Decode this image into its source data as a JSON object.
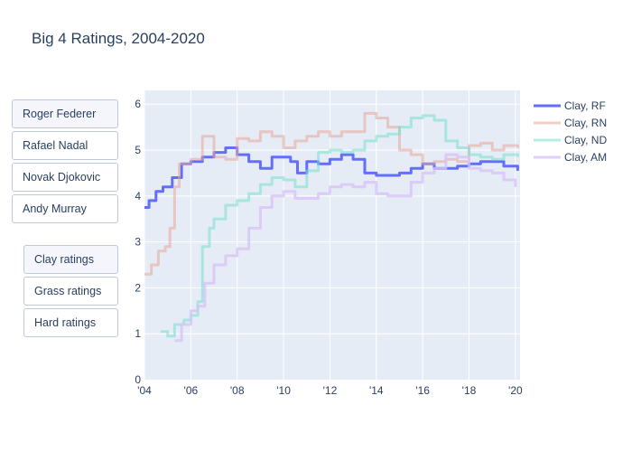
{
  "title": "Big 4 Ratings, 2004-2020",
  "player_buttons": [
    {
      "label": "Roger Federer",
      "active": true
    },
    {
      "label": "Rafael Nadal",
      "active": false
    },
    {
      "label": "Novak Djokovic",
      "active": false
    },
    {
      "label": "Andy Murray",
      "active": false
    }
  ],
  "surface_buttons": [
    {
      "label": "Clay ratings",
      "active": true
    },
    {
      "label": "Grass ratings",
      "active": false
    },
    {
      "label": "Hard ratings",
      "active": false
    }
  ],
  "chart_data": {
    "type": "line",
    "title": "Big 4 Ratings, 2004-2020",
    "xlim": [
      2004.0,
      2020.2
    ],
    "ylim": [
      0,
      6.3
    ],
    "x_ticks": [
      2004,
      2006,
      2008,
      2010,
      2012,
      2014,
      2016,
      2018,
      2020
    ],
    "x_tick_labels": [
      "'04",
      "'06",
      "'08",
      "'10",
      "'12",
      "'14",
      "'16",
      "'18",
      "'20"
    ],
    "y_ticks": [
      0,
      1,
      2,
      3,
      4,
      5,
      6
    ],
    "grid": true,
    "legend_position": "top-right",
    "series": [
      {
        "name": "Clay,  RF",
        "color": "#636efa",
        "opacity": 1.0,
        "x": [
          2004.0,
          2004.2,
          2004.5,
          2004.8,
          2005.2,
          2005.6,
          2006.0,
          2006.5,
          2007.0,
          2007.5,
          2008.0,
          2008.5,
          2009.0,
          2009.5,
          2010.0,
          2010.3,
          2010.6,
          2011.0,
          2011.5,
          2012.0,
          2012.5,
          2013.0,
          2013.5,
          2014.0,
          2014.5,
          2015.0,
          2015.5,
          2016.0,
          2016.5,
          2017.0,
          2017.5,
          2018.0,
          2018.5,
          2019.0,
          2019.5,
          2020.1
        ],
        "y": [
          3.75,
          3.9,
          4.1,
          4.2,
          4.4,
          4.7,
          4.75,
          4.85,
          4.95,
          5.05,
          4.9,
          4.75,
          4.6,
          4.85,
          4.85,
          4.75,
          4.5,
          4.75,
          4.7,
          4.8,
          4.9,
          4.8,
          4.5,
          4.45,
          4.45,
          4.5,
          4.6,
          4.7,
          4.6,
          4.6,
          4.65,
          4.7,
          4.75,
          4.75,
          4.65,
          4.55
        ]
      },
      {
        "name": "Clay,  RN",
        "color": "#e8a598",
        "opacity": 0.55,
        "x": [
          2004.0,
          2004.3,
          2004.6,
          2004.9,
          2005.1,
          2005.3,
          2005.5,
          2006.0,
          2006.5,
          2007.0,
          2007.5,
          2008.0,
          2008.5,
          2009.0,
          2009.5,
          2010.0,
          2010.5,
          2011.0,
          2011.5,
          2012.0,
          2012.5,
          2013.0,
          2013.5,
          2014.0,
          2014.5,
          2015.0,
          2015.5,
          2016.0,
          2016.5,
          2017.0,
          2017.5,
          2018.0,
          2018.5,
          2019.0,
          2019.5,
          2020.1
        ],
        "y": [
          2.3,
          2.5,
          2.8,
          2.9,
          3.3,
          4.2,
          4.7,
          4.8,
          5.3,
          4.85,
          4.8,
          5.25,
          5.2,
          5.4,
          5.3,
          5.05,
          5.2,
          5.3,
          5.4,
          5.3,
          5.4,
          5.4,
          5.8,
          5.7,
          5.5,
          5.0,
          4.9,
          4.7,
          4.75,
          4.8,
          4.75,
          5.1,
          5.15,
          5.0,
          5.1,
          5.05
        ]
      },
      {
        "name": "Clay,  ND",
        "color": "#74e0cd",
        "opacity": 0.55,
        "x": [
          2004.7,
          2005.0,
          2005.3,
          2005.7,
          2006.0,
          2006.3,
          2006.5,
          2006.8,
          2007.0,
          2007.5,
          2008.0,
          2008.5,
          2009.0,
          2009.5,
          2010.0,
          2010.5,
          2011.0,
          2011.5,
          2012.0,
          2012.5,
          2013.0,
          2013.5,
          2014.0,
          2014.5,
          2015.0,
          2015.5,
          2016.0,
          2016.5,
          2017.0,
          2017.5,
          2018.0,
          2018.5,
          2019.0,
          2019.5,
          2020.1
        ],
        "y": [
          1.05,
          0.95,
          1.2,
          1.3,
          1.4,
          1.7,
          2.9,
          3.3,
          3.5,
          3.8,
          3.9,
          4.05,
          4.25,
          4.4,
          4.35,
          4.2,
          4.55,
          4.95,
          5.0,
          4.95,
          5.0,
          5.2,
          5.3,
          5.35,
          5.5,
          5.7,
          5.75,
          5.65,
          5.2,
          5.05,
          4.9,
          4.85,
          4.8,
          4.9,
          4.85
        ]
      },
      {
        "name": "Clay,  AM",
        "color": "#d8c3f8",
        "opacity": 0.8,
        "x": [
          2005.3,
          2005.6,
          2006.0,
          2006.3,
          2006.6,
          2007.0,
          2007.5,
          2008.0,
          2008.5,
          2009.0,
          2009.5,
          2010.0,
          2010.5,
          2011.0,
          2011.5,
          2012.0,
          2012.5,
          2013.0,
          2013.5,
          2014.0,
          2014.5,
          2015.0,
          2015.5,
          2016.0,
          2016.5,
          2017.0,
          2017.5,
          2018.0,
          2018.5,
          2019.0,
          2019.5,
          2020.0
        ],
        "y": [
          0.85,
          1.2,
          1.5,
          1.6,
          2.1,
          2.5,
          2.7,
          2.85,
          3.3,
          3.75,
          4.0,
          4.1,
          3.95,
          3.95,
          4.05,
          4.2,
          4.25,
          4.2,
          4.3,
          4.05,
          4.0,
          4.0,
          4.3,
          4.5,
          4.6,
          4.9,
          4.85,
          4.6,
          4.55,
          4.5,
          4.35,
          4.2
        ]
      }
    ]
  }
}
